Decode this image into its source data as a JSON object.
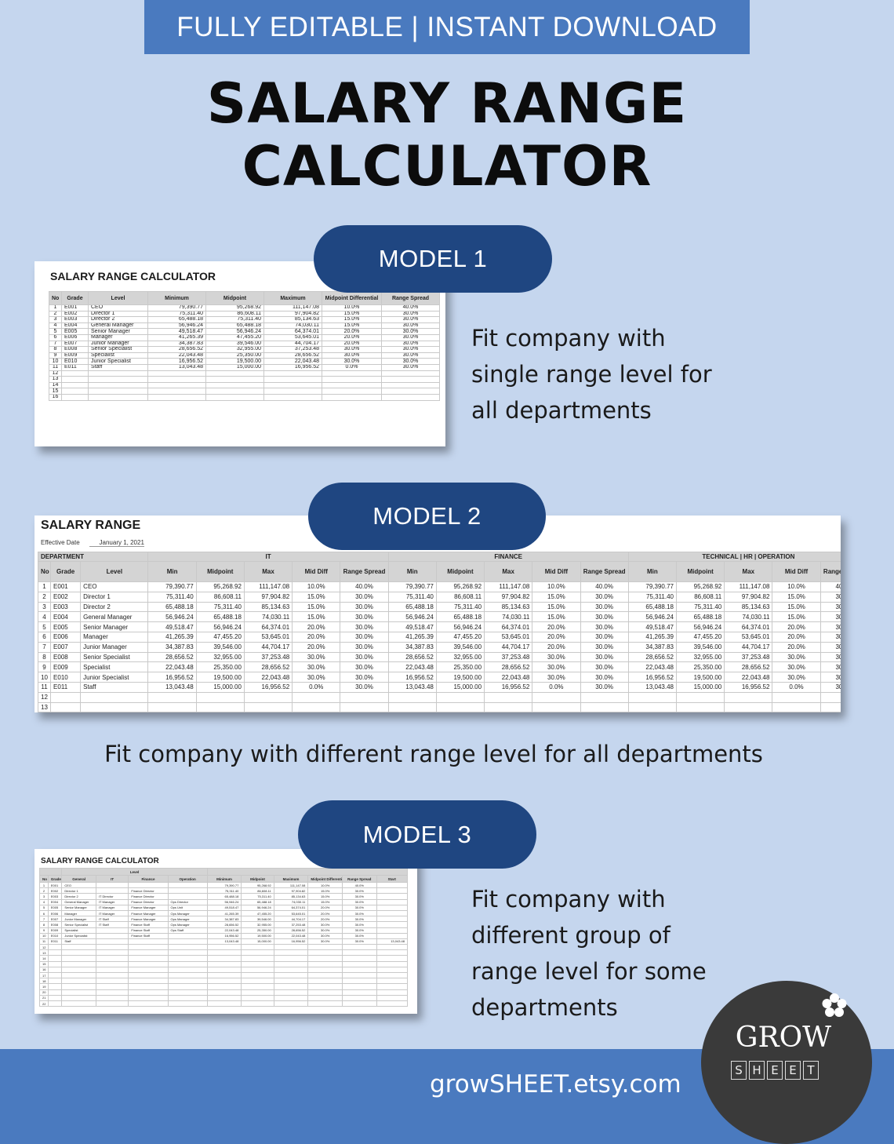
{
  "banner": "FULLY EDITABLE | INSTANT DOWNLOAD",
  "title_line1": "SALARY RANGE",
  "title_line2": "CALCULATOR",
  "models": [
    {
      "label": "MODEL 1",
      "desc_lines": [
        "Fit company with",
        "single range level for",
        "all departments"
      ]
    },
    {
      "label": "MODEL 2",
      "desc_lines": [
        "Fit company with different range level for all departments"
      ]
    },
    {
      "label": "MODEL 3",
      "desc_lines": [
        "Fit company with",
        "different group of",
        "range level for some",
        "departments"
      ]
    }
  ],
  "sheet1": {
    "title": "SALARY RANGE CALCULATOR",
    "headers": [
      "No",
      "Grade",
      "Level",
      "Minimum",
      "Midpoint",
      "Maximum",
      "Midpoint Differential",
      "Range Spread"
    ],
    "rows": [
      [
        "1",
        "E001",
        "CEO",
        "79,390.77",
        "95,268.92",
        "111,147.08",
        "10.0%",
        "40.0%"
      ],
      [
        "2",
        "E002",
        "Director 1",
        "75,311.40",
        "86,608.11",
        "97,904.82",
        "15.0%",
        "30.0%"
      ],
      [
        "3",
        "E003",
        "Director 2",
        "65,488.18",
        "75,311.40",
        "85,134.63",
        "15.0%",
        "30.0%"
      ],
      [
        "4",
        "E004",
        "General Manager",
        "56,946.24",
        "65,488.18",
        "74,030.11",
        "15.0%",
        "30.0%"
      ],
      [
        "5",
        "E005",
        "Senior Manager",
        "49,518.47",
        "56,946.24",
        "64,374.01",
        "20.0%",
        "30.0%"
      ],
      [
        "6",
        "E006",
        "Manager",
        "41,265.39",
        "47,455.20",
        "53,645.01",
        "20.0%",
        "30.0%"
      ],
      [
        "7",
        "E007",
        "Junior Manager",
        "34,387.83",
        "39,546.00",
        "44,704.17",
        "20.0%",
        "30.0%"
      ],
      [
        "8",
        "E008",
        "Senior Specialist",
        "28,656.52",
        "32,955.00",
        "37,253.48",
        "30.0%",
        "30.0%"
      ],
      [
        "9",
        "E009",
        "Specialist",
        "22,043.48",
        "25,350.00",
        "28,656.52",
        "30.0%",
        "30.0%"
      ],
      [
        "10",
        "E010",
        "Junior Specialist",
        "16,956.52",
        "19,500.00",
        "22,043.48",
        "30.0%",
        "30.0%"
      ],
      [
        "11",
        "E011",
        "Staff",
        "13,043.48",
        "15,000.00",
        "16,956.52",
        "0.0%",
        "30.0%"
      ]
    ],
    "empty_rows": [
      "12",
      "13",
      "14",
      "15",
      "16"
    ]
  },
  "sheet2": {
    "title": "SALARY RANGE",
    "effective_label": "Effective Date",
    "effective_value": "January 1, 2021",
    "dept_label": "DEPARTMENT",
    "groups": [
      "IT",
      "FINANCE",
      "TECHNICAL | HR | OPERATION"
    ],
    "headers": [
      "No",
      "Grade",
      "Level"
    ],
    "group_headers": [
      "Min",
      "Midpoint",
      "Max",
      "Mid Diff",
      "Range Spread"
    ],
    "rows": [
      [
        "1",
        "E001",
        "CEO",
        "79,390.77",
        "95,268.92",
        "111,147.08",
        "10.0%",
        "40.0%"
      ],
      [
        "2",
        "E002",
        "Director 1",
        "75,311.40",
        "86,608.11",
        "97,904.82",
        "15.0%",
        "30.0%"
      ],
      [
        "3",
        "E003",
        "Director 2",
        "65,488.18",
        "75,311.40",
        "85,134.63",
        "15.0%",
        "30.0%"
      ],
      [
        "4",
        "E004",
        "General Manager",
        "56,946.24",
        "65,488.18",
        "74,030.11",
        "15.0%",
        "30.0%"
      ],
      [
        "5",
        "E005",
        "Senior Manager",
        "49,518.47",
        "56,946.24",
        "64,374.01",
        "20.0%",
        "30.0%"
      ],
      [
        "6",
        "E006",
        "Manager",
        "41,265.39",
        "47,455.20",
        "53,645.01",
        "20.0%",
        "30.0%"
      ],
      [
        "7",
        "E007",
        "Junior Manager",
        "34,387.83",
        "39,546.00",
        "44,704.17",
        "20.0%",
        "30.0%"
      ],
      [
        "8",
        "E008",
        "Senior Specialist",
        "28,656.52",
        "32,955.00",
        "37,253.48",
        "30.0%",
        "30.0%"
      ],
      [
        "9",
        "E009",
        "Specialist",
        "22,043.48",
        "25,350.00",
        "28,656.52",
        "30.0%",
        "30.0%"
      ],
      [
        "10",
        "E010",
        "Junior Specialist",
        "16,956.52",
        "19,500.00",
        "22,043.48",
        "30.0%",
        "30.0%"
      ],
      [
        "11",
        "E011",
        "Staff",
        "13,043.48",
        "15,000.00",
        "16,956.52",
        "0.0%",
        "30.0%"
      ]
    ],
    "empty_rows": [
      "12",
      "13"
    ]
  },
  "sheet3": {
    "title": "SALARY RANGE CALCULATOR",
    "headers": [
      "No",
      "Grade",
      "General",
      "IT",
      "Finance",
      "Operation",
      "Minimum",
      "Midpoint",
      "Maximum",
      "Midpoint Differential",
      "Range Spread",
      "Start"
    ],
    "level_label": "Level",
    "rows": [
      [
        "1",
        "E001",
        "CEO",
        "",
        "",
        "",
        "79,390.77",
        "95,268.92",
        "111,147.08",
        "10.0%",
        "40.0%",
        ""
      ],
      [
        "2",
        "E002",
        "Director 1",
        "",
        "Finance Director",
        "",
        "75,311.40",
        "86,608.11",
        "97,904.82",
        "15.0%",
        "30.0%",
        ""
      ],
      [
        "3",
        "E003",
        "Director 2",
        "IT Director",
        "Finance Director",
        "",
        "65,488.18",
        "75,311.40",
        "85,134.63",
        "15.0%",
        "30.0%",
        ""
      ],
      [
        "4",
        "E004",
        "General Manager",
        "IT Manager",
        "Finance Director",
        "Ops Director",
        "56,946.24",
        "65,488.18",
        "74,030.11",
        "15.0%",
        "30.0%",
        ""
      ],
      [
        "5",
        "E005",
        "Senior Manager",
        "IT Manager",
        "Finance Manager",
        "Ops Unit",
        "49,518.47",
        "56,946.24",
        "64,374.01",
        "20.0%",
        "30.0%",
        ""
      ],
      [
        "6",
        "E006",
        "Manager",
        "IT Manager",
        "Finance Manager",
        "Ops Manager",
        "41,265.39",
        "47,455.20",
        "53,645.01",
        "20.0%",
        "30.0%",
        ""
      ],
      [
        "7",
        "E007",
        "Junior Manager",
        "IT Staff",
        "Finance Manager",
        "Ops Manager",
        "34,387.83",
        "39,546.00",
        "44,704.17",
        "20.0%",
        "30.0%",
        ""
      ],
      [
        "8",
        "E008",
        "Senior Specialist",
        "IT Staff",
        "Finance Staff",
        "Ops Manager",
        "28,656.52",
        "32,955.00",
        "37,253.48",
        "30.0%",
        "30.0%",
        ""
      ],
      [
        "9",
        "E009",
        "Specialist",
        "",
        "Finance Staff",
        "Ops Staff",
        "22,043.48",
        "25,350.00",
        "28,656.52",
        "30.0%",
        "30.0%",
        ""
      ],
      [
        "10",
        "E010",
        "Junior Specialist",
        "",
        "Finance Staff",
        "",
        "16,956.52",
        "19,500.00",
        "22,043.48",
        "30.0%",
        "30.0%",
        ""
      ],
      [
        "11",
        "E011",
        "Staff",
        "",
        "",
        "",
        "13,043.48",
        "15,000.00",
        "16,956.52",
        "30.0%",
        "30.0%",
        "13,043.48"
      ]
    ],
    "empty_rows": [
      "12",
      "13",
      "14",
      "15",
      "16",
      "17",
      "18",
      "19",
      "20",
      "21",
      "22"
    ]
  },
  "footer": {
    "url": "growSHEET.etsy.com",
    "logo_word": "GROW",
    "logo_letters": [
      "S",
      "H",
      "E",
      "E",
      "T"
    ]
  },
  "colors": {
    "background": "#c5d6ee",
    "banner": "#4a7abf",
    "pill": "#1f4681",
    "logo": "#3a3a3a"
  }
}
